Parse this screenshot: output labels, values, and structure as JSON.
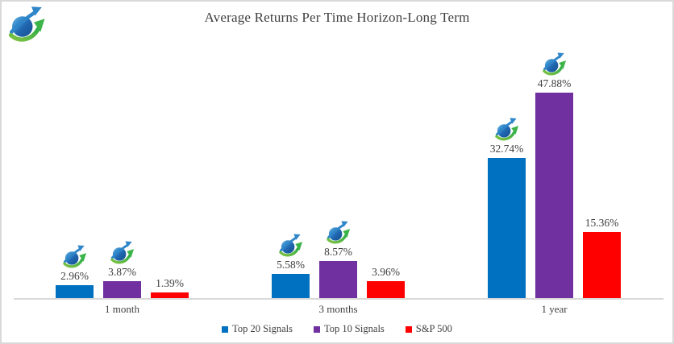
{
  "window": {
    "background": "#ffffff",
    "border_color": "#d9d9d9"
  },
  "brand": {
    "logo_icon": "growth-arrow-globe-icon"
  },
  "chart_data": {
    "type": "bar",
    "title": "Average Returns Per Time Horizon-Long Term",
    "categories": [
      "1 month",
      "3 months",
      "1 year"
    ],
    "series": [
      {
        "name": "Top 20 Signals",
        "color": "#0070C0",
        "values": [
          2.96,
          5.58,
          32.74
        ],
        "labels": [
          "2.96%",
          "5.58%",
          "32.74%"
        ],
        "icon_above_label": true
      },
      {
        "name": "Top 10 Signals",
        "color": "#7030A0",
        "values": [
          3.87,
          8.57,
          47.88
        ],
        "labels": [
          "3.87%",
          "8.57%",
          "47.88%"
        ],
        "icon_above_label": true
      },
      {
        "name": "S&P 500",
        "color": "#FF0000",
        "values": [
          1.39,
          3.96,
          15.36
        ],
        "labels": [
          "1.39%",
          "3.96%",
          "15.36%"
        ],
        "icon_above_label": false
      }
    ],
    "xlabel": "",
    "ylabel": "",
    "ylim": [
      0,
      55
    ],
    "grid": false,
    "y_axis_visible": false,
    "axis_line_color": "#D9D9D9",
    "label_color": "#404040",
    "legend_position": "bottom"
  }
}
